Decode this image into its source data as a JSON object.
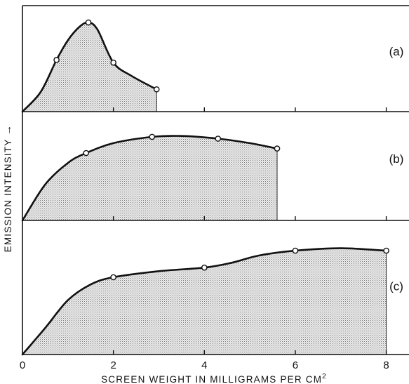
{
  "chart_data": {
    "type": "area",
    "xlabel": "SCREEN WEIGHT IN MILLIGRAMS PER CM",
    "xlabel_superscript": "2",
    "ylabel": "EMISSION INTENSITY",
    "ylabel_arrow": "→",
    "xlim": [
      0,
      8.5
    ],
    "ylim": [
      0,
      1
    ],
    "x_ticks": [
      0,
      2,
      4,
      6,
      8
    ],
    "x_tick_labels": [
      "0",
      "2",
      "4",
      "6",
      "8"
    ],
    "grid": false,
    "legend": "none",
    "panels": [
      {
        "label": "(a)",
        "curve": [
          [
            0,
            0
          ],
          [
            0.4,
            0.22
          ],
          [
            0.75,
            0.58
          ],
          [
            1.0,
            0.8
          ],
          [
            1.25,
            0.95
          ],
          [
            1.45,
            1.0
          ],
          [
            1.65,
            0.92
          ],
          [
            2.0,
            0.55
          ],
          [
            2.4,
            0.4
          ],
          [
            2.95,
            0.25
          ]
        ],
        "markers": [
          [
            0.75,
            0.58
          ],
          [
            1.45,
            1.0
          ],
          [
            2.0,
            0.55
          ],
          [
            2.95,
            0.25
          ]
        ],
        "fill_to_x": 2.95
      },
      {
        "label": "(b)",
        "curve": [
          [
            0,
            0
          ],
          [
            0.5,
            0.4
          ],
          [
            1.0,
            0.64
          ],
          [
            1.4,
            0.75
          ],
          [
            2.0,
            0.86
          ],
          [
            2.85,
            0.93
          ],
          [
            3.5,
            0.94
          ],
          [
            4.3,
            0.91
          ],
          [
            5.0,
            0.86
          ],
          [
            5.6,
            0.8
          ]
        ],
        "markers": [
          [
            1.4,
            0.75
          ],
          [
            2.85,
            0.93
          ],
          [
            4.3,
            0.91
          ],
          [
            5.6,
            0.8
          ]
        ],
        "fill_to_x": 5.6
      },
      {
        "label": "(c)",
        "curve": [
          [
            0,
            0
          ],
          [
            0.5,
            0.22
          ],
          [
            1.0,
            0.45
          ],
          [
            1.5,
            0.58
          ],
          [
            2.0,
            0.64
          ],
          [
            3.0,
            0.69
          ],
          [
            4.0,
            0.72
          ],
          [
            4.6,
            0.76
          ],
          [
            5.2,
            0.82
          ],
          [
            6.0,
            0.86
          ],
          [
            7.0,
            0.88
          ],
          [
            8.0,
            0.86
          ]
        ],
        "markers": [
          [
            2.0,
            0.64
          ],
          [
            4.0,
            0.72
          ],
          [
            6.0,
            0.86
          ],
          [
            8.0,
            0.86
          ]
        ],
        "fill_to_x": 8.0
      }
    ]
  }
}
